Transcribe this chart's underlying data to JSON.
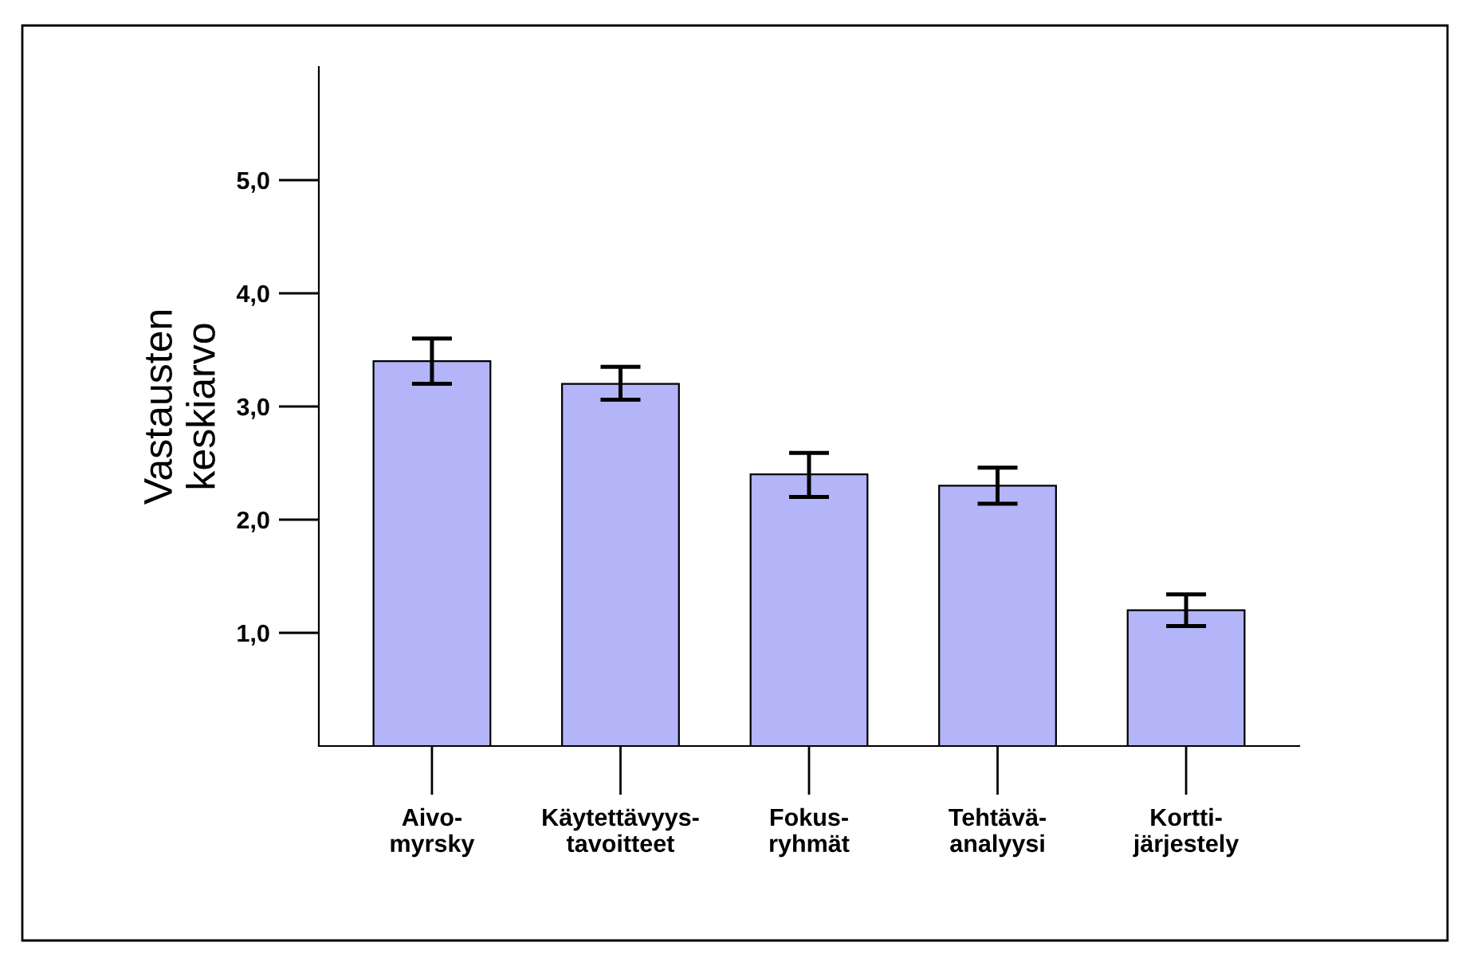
{
  "chart_data": {
    "type": "bar",
    "ylabel": "Vastausten\nkeskiarvo",
    "categories": [
      "Aivo-\nmyrsky",
      "Käytettävyys-\ntavoitteet",
      "Fokus-\nryhmät",
      "Tehtävä-\nanalyysi",
      "Kortti-\njärjestely"
    ],
    "values": [
      3.4,
      3.2,
      2.4,
      2.3,
      1.2
    ],
    "errors": [
      [
        3.2,
        3.6
      ],
      [
        3.06,
        3.35
      ],
      [
        2.2,
        2.59
      ],
      [
        2.14,
        2.46
      ],
      [
        1.06,
        1.34
      ]
    ],
    "color": "#b4b4f8",
    "ylim": [
      0,
      6
    ],
    "yticks": [
      {
        "value": 1,
        "label": "1,0"
      },
      {
        "value": 2,
        "label": "2,0"
      },
      {
        "value": 3,
        "label": "3,0"
      },
      {
        "value": 4,
        "label": "4,0"
      },
      {
        "value": 5,
        "label": "5,0"
      }
    ],
    "grid": false,
    "legend": false
  }
}
